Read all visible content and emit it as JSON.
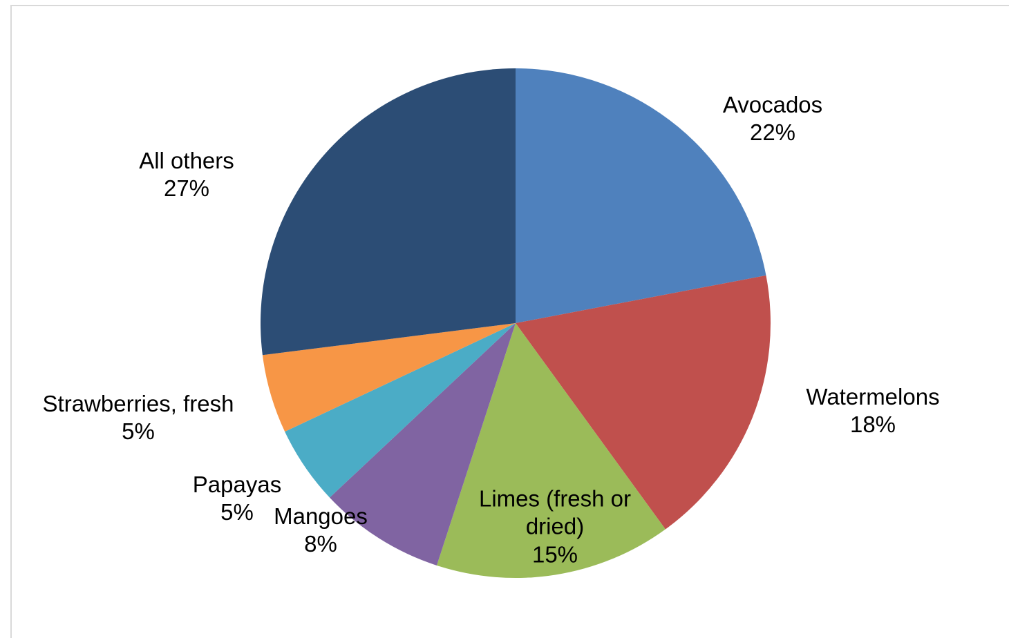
{
  "chart_data": {
    "type": "pie",
    "categories": [
      "Avocados",
      "Watermelons",
      "Limes (fresh or dried)",
      "Mangoes",
      "Papayas",
      "Strawberries, fresh",
      "All others"
    ],
    "values": [
      22,
      18,
      15,
      8,
      5,
      5,
      27
    ],
    "value_labels": [
      "22%",
      "18%",
      "15%",
      "8%",
      "5%",
      "5%",
      "27%"
    ],
    "colors": [
      "#4f81bd",
      "#c0504d",
      "#9bbb59",
      "#8064a2",
      "#4bacc6",
      "#f79646",
      "#2c4d75"
    ]
  }
}
